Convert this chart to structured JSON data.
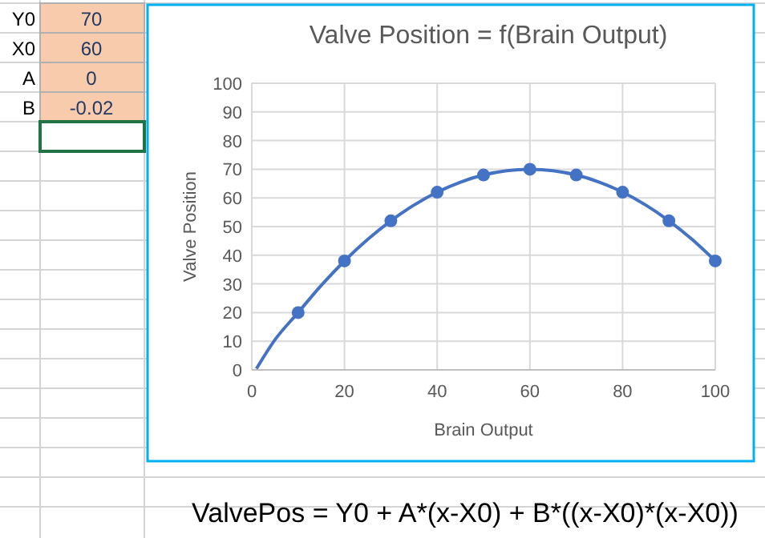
{
  "chart_data": {
    "type": "line",
    "title": "Valve Position = f(Brain Output)",
    "xlabel": "Brain Output",
    "ylabel": "Valve Position",
    "xlim": [
      0,
      100
    ],
    "xticks": [
      0,
      20,
      40,
      60,
      80,
      100
    ],
    "ylim": [
      0,
      100
    ],
    "yticks": [
      0,
      10,
      20,
      30,
      40,
      50,
      60,
      70,
      80,
      90,
      100
    ],
    "grid": true,
    "series": [
      {
        "color": "#4472c4",
        "marker": "none",
        "x": [
          1,
          5,
          10,
          15,
          20,
          25,
          30,
          35,
          40,
          45,
          50,
          55,
          60,
          65,
          70,
          75,
          80,
          85,
          90,
          95,
          100
        ],
        "values": [
          0.4,
          10.5,
          20,
          29.5,
          38,
          45.5,
          52,
          57.5,
          62,
          65.5,
          68,
          69.5,
          70,
          69.5,
          68,
          65.5,
          62,
          57.5,
          52,
          45.5,
          38
        ]
      },
      {
        "type": "scatter",
        "color": "#4472c4",
        "marker": "circle",
        "x": [
          10,
          20,
          30,
          40,
          50,
          60,
          70,
          80,
          90,
          100
        ],
        "values": [
          20,
          38,
          52,
          62,
          68,
          70,
          68,
          62,
          52,
          38
        ]
      }
    ],
    "annotations": [
      "Y0",
      "70",
      "X0",
      "60",
      "A",
      "0",
      "B",
      "-0.02",
      "ValvePos = Y0 + A*(x-X0) + B*((x-X0)*(x-X0))"
    ]
  }
}
